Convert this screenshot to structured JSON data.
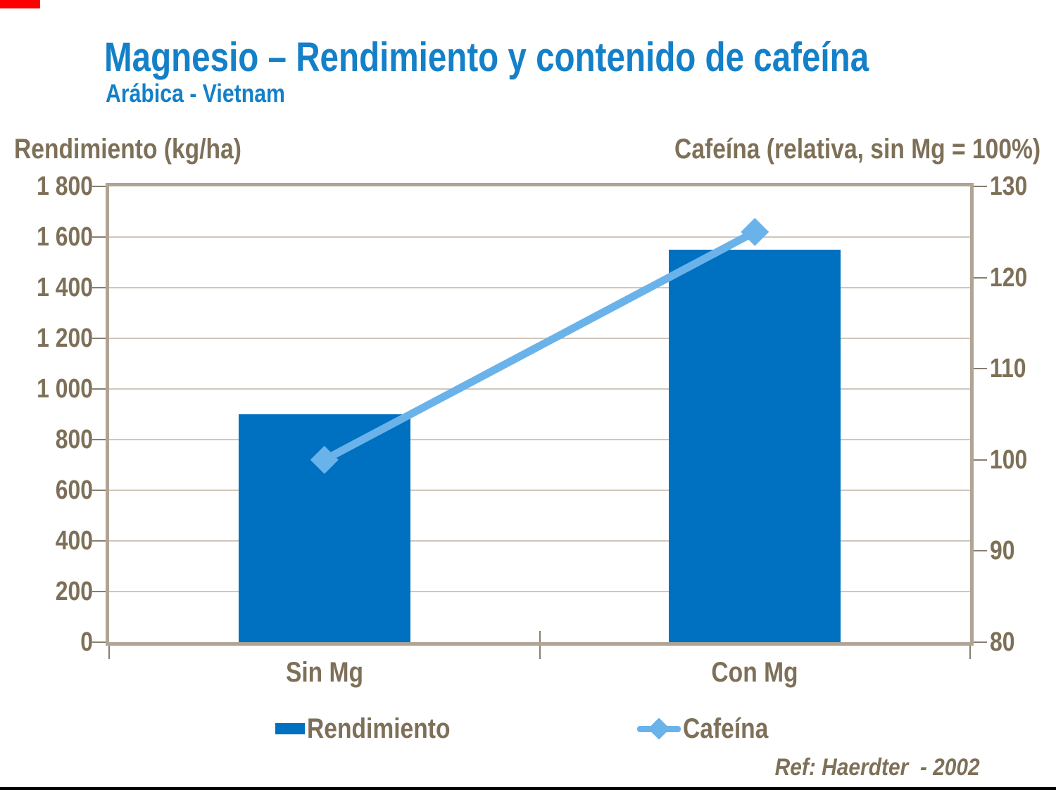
{
  "header": {
    "title": "Magnesio – Rendimiento y contenido de cafeína",
    "subtitle": "Arábica - Vietnam"
  },
  "footer": {
    "reference": "Ref: Haerdter  - 2002"
  },
  "colors": {
    "title_blue": "#1480C8",
    "bar_blue": "#0070C0",
    "line_blue": "#6AB3EA",
    "text_taupe": "#7E7058",
    "gridline": "#CFC7BA",
    "axis_frame": "#B0A494",
    "tick": "#8A7E6E",
    "accent_red": "#FF0000",
    "footer_line": "#000000"
  },
  "chart_data": {
    "type": "bar",
    "subtype": "combo bar + line, dual axis",
    "categories": [
      "Sin Mg",
      "Con Mg"
    ],
    "series": [
      {
        "name": "Rendimiento",
        "type": "bar",
        "axis": "left",
        "color": "#0070C0",
        "values": [
          900,
          1550
        ]
      },
      {
        "name": "Cafeína",
        "type": "line",
        "axis": "right",
        "color": "#6AB3EA",
        "marker": "diamond",
        "values": [
          100,
          125
        ]
      }
    ],
    "axes": {
      "left": {
        "title": "Rendimiento (kg/ha)",
        "min": 0,
        "max": 1800,
        "step": 200,
        "tick_labels": [
          "0",
          "200",
          "400",
          "600",
          "800",
          "1 000",
          "1 200",
          "1 400",
          "1 600",
          "1 800"
        ]
      },
      "right": {
        "title": "Cafeína (relativa, sin Mg = 100%)",
        "min": 80,
        "max": 130,
        "step": 10,
        "tick_labels": [
          "80",
          "90",
          "100",
          "110",
          "120",
          "130"
        ]
      }
    },
    "grid": true,
    "legend_position": "bottom",
    "title": "Magnesio – Rendimiento y contenido de cafeína",
    "subtitle": "Arábica - Vietnam"
  }
}
